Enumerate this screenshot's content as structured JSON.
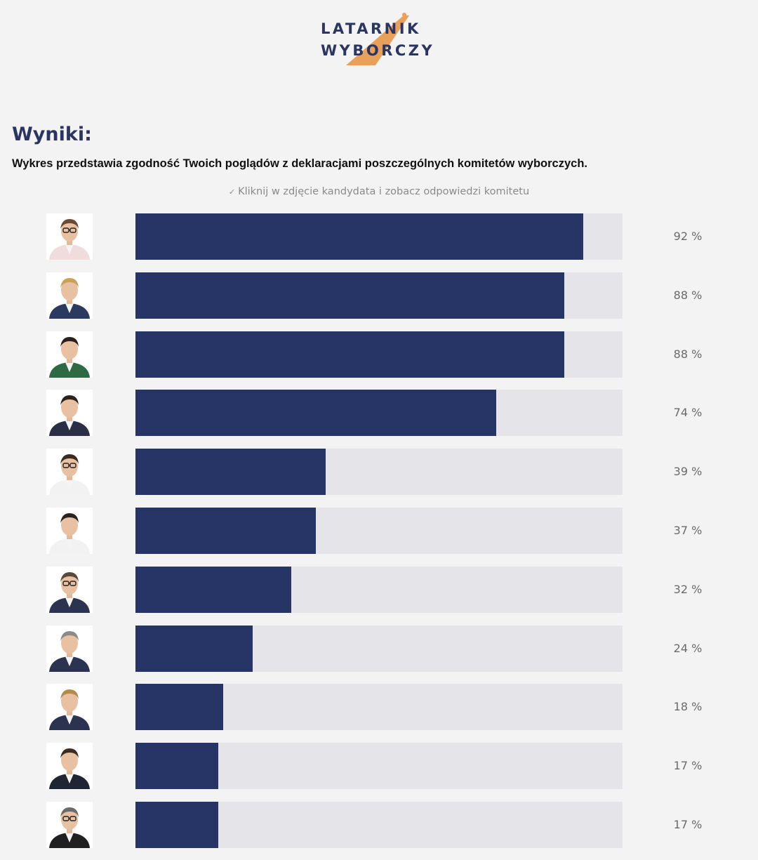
{
  "logo": {
    "line1": "LATARNIK",
    "line2": "WYBORCZY",
    "accent_color": "#e8a05a",
    "text_color": "#2a3561"
  },
  "heading": "Wyniki:",
  "description": "Wykres przedstawia zgodność Twoich poglądów z deklaracjami poszczególnych komitetów wyborczych.",
  "hint": {
    "icon": "check-icon",
    "text": "Kliknij w zdjęcie kandydata i zobacz odpowiedzi komitetu"
  },
  "colors": {
    "bar_fill": "#263565",
    "bar_track": "#e5e5e9",
    "background": "#f3f3f3"
  },
  "chart_data": {
    "type": "bar",
    "orientation": "horizontal",
    "xlim": [
      0,
      100
    ],
    "unit": "%",
    "values": [
      92,
      88,
      88,
      74,
      39,
      37,
      32,
      24,
      18,
      17,
      17
    ],
    "labels": [
      "92 %",
      "88 %",
      "88 %",
      "74 %",
      "39 %",
      "37 %",
      "32 %",
      "24 %",
      "18 %",
      "17 %",
      "17 %"
    ]
  },
  "candidates": [
    {
      "suit": "#f0dcdc",
      "hair": "#6b4a33",
      "glasses": true
    },
    {
      "suit": "#2b3a60",
      "hair": "#c9a25a",
      "glasses": false
    },
    {
      "suit": "#2e6b45",
      "hair": "#2a1f1c",
      "glasses": false
    },
    {
      "suit": "#2a2f45",
      "hair": "#2d221c",
      "glasses": false
    },
    {
      "suit": "#f2f2f2",
      "hair": "#3a2b22",
      "glasses": true
    },
    {
      "suit": "#f2f2f2",
      "hair": "#2a2220",
      "glasses": false
    },
    {
      "suit": "#2b3350",
      "hair": "#5a4a3c",
      "glasses": true
    },
    {
      "suit": "#2b3350",
      "hair": "#8a8a86",
      "glasses": false
    },
    {
      "suit": "#2b3350",
      "hair": "#b28a4e",
      "glasses": false
    },
    {
      "suit": "#202533",
      "hair": "#3a2d24",
      "glasses": false
    },
    {
      "suit": "#202020",
      "hair": "#6a6a66",
      "glasses": true
    }
  ]
}
